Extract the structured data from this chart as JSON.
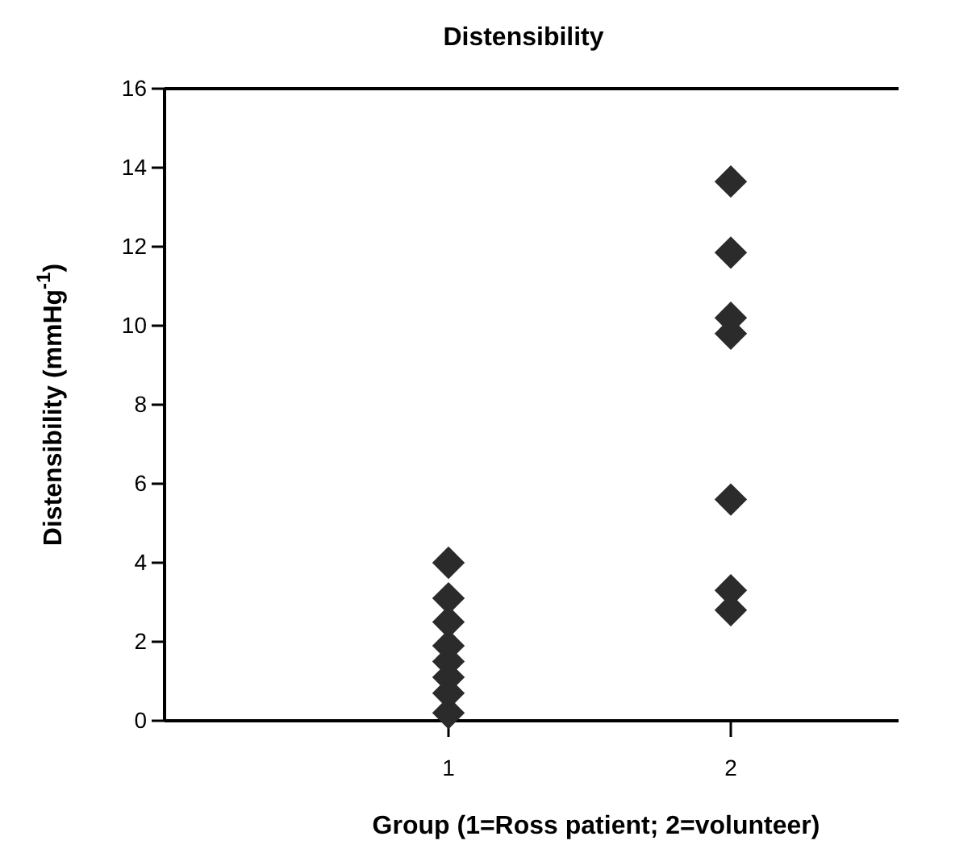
{
  "chart_data": {
    "type": "scatter",
    "title": "Distensibility",
    "xlabel": "Group (1=Ross patient; 2=volunteer)",
    "ylabel": "Distensibility (mmHg$^{-1}$)",
    "categories": [
      "1",
      "2"
    ],
    "ylim": [
      0,
      16
    ],
    "yticks": [
      0,
      2,
      4,
      6,
      8,
      10,
      12,
      14,
      16
    ],
    "marker": "diamond",
    "grid": false,
    "series": [
      {
        "color": "#2b2b2b",
        "x": [
          "1",
          "1",
          "1",
          "1",
          "1",
          "1",
          "1",
          "1"
        ],
        "values": [
          4.0,
          3.1,
          2.5,
          1.9,
          1.5,
          1.1,
          0.7,
          0.2
        ]
      },
      {
        "color": "#2b2b2b",
        "x": [
          "2",
          "2",
          "2",
          "2",
          "2",
          "2",
          "2"
        ],
        "values": [
          13.65,
          11.85,
          10.2,
          9.8,
          5.6,
          3.3,
          2.8
        ]
      }
    ]
  }
}
